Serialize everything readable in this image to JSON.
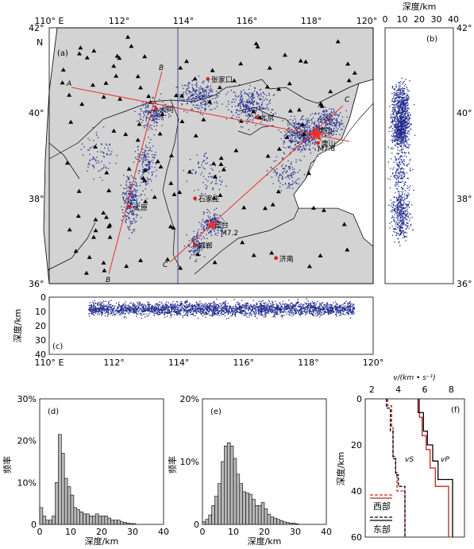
{
  "chart_data": [
    {
      "id": "a",
      "type": "map-scatter",
      "panel_label": "(a)",
      "lon_ticks": [
        "110° E",
        "112°",
        "114°",
        "116°",
        "118°",
        "120°"
      ],
      "lat_ticks": [
        "42°",
        "40°",
        "38°",
        "36°"
      ],
      "north_label": "N",
      "xlim": [
        110,
        120
      ],
      "ylim": [
        36,
        42
      ],
      "profile_endpoints": [
        "A",
        "B",
        "B",
        "C",
        "C"
      ],
      "cities": [
        {
          "name": "张家口",
          "lon": 114.9,
          "lat": 40.8
        },
        {
          "name": "北京",
          "lon": 116.4,
          "lat": 39.9
        },
        {
          "name": "大同",
          "lon": 113.3,
          "lat": 40.1
        },
        {
          "name": "唐山",
          "lon": 118.2,
          "lat": 39.6
        },
        {
          "name": "唐山",
          "lon": 118.3,
          "lat": 39.3
        },
        {
          "name": "太原",
          "lon": 112.5,
          "lat": 37.8
        },
        {
          "name": "石家庄",
          "lon": 114.5,
          "lat": 38.0
        },
        {
          "name": "邢台",
          "lon": 115.0,
          "lat": 37.4
        },
        {
          "name": "邯郸",
          "lon": 114.5,
          "lat": 36.9
        },
        {
          "name": "济南",
          "lon": 117.0,
          "lat": 36.6
        }
      ],
      "magnitude_labels": [
        "M7.8",
        "M7.2"
      ],
      "colors": {
        "land": "#d3d3d3",
        "events": "#1f2a8a",
        "profile": "#e8322b",
        "city": "#d7261e"
      }
    },
    {
      "id": "b",
      "type": "scatter",
      "panel_label": "(b)",
      "xlabel": "深度/km",
      "x_ticks": [
        "0",
        "10",
        "20",
        "30",
        "40"
      ],
      "y_ticks": [
        "42°",
        "40°",
        "38°",
        "36°"
      ],
      "xlim": [
        0,
        40
      ],
      "ylim": [
        36,
        42
      ]
    },
    {
      "id": "c",
      "type": "scatter",
      "panel_label": "(c)",
      "ylabel": "深度/km",
      "y_ticks": [
        "0",
        "10",
        "20",
        "30",
        "40"
      ],
      "x_ticks": [
        "110° E",
        "112°",
        "114°",
        "116°",
        "118°",
        "120°"
      ],
      "xlim": [
        110,
        120
      ],
      "ylim": [
        0,
        40
      ]
    },
    {
      "id": "d",
      "type": "bar",
      "panel_label": "(d)",
      "xlabel": "深度/km",
      "ylabel": "频率",
      "x_ticks": [
        "0",
        "10",
        "20",
        "30",
        "40"
      ],
      "y_ticks": [
        "0",
        "10%",
        "20%",
        "30%"
      ],
      "xlim": [
        0,
        40
      ],
      "ylim": [
        0,
        30
      ],
      "bin_width_km": 1,
      "values": [
        4,
        2,
        1,
        1,
        2,
        10,
        21.5,
        17,
        11,
        9,
        7,
        4,
        3.5,
        3,
        2.5,
        2.5,
        2,
        2,
        2.5,
        2,
        2,
        2,
        1.5,
        1,
        1,
        1,
        0.6,
        0.5,
        0.3,
        0.2,
        0.2
      ]
    },
    {
      "id": "e",
      "type": "bar",
      "panel_label": "(e)",
      "xlabel": "深度/km",
      "ylabel": "频率",
      "x_ticks": [
        "0",
        "10",
        "20",
        "30",
        "40"
      ],
      "y_ticks": [
        "0",
        "10%",
        "20%"
      ],
      "xlim": [
        0,
        40
      ],
      "ylim": [
        0,
        20
      ],
      "bin_width_km": 1,
      "values": [
        0.4,
        0.8,
        1.5,
        3,
        4.5,
        6.5,
        10,
        12.5,
        13,
        12.5,
        10.5,
        8,
        6.5,
        5.2,
        5,
        4.8,
        4,
        3,
        3,
        3.5,
        2.5,
        1.6,
        1.2,
        1,
        0.8,
        0.6,
        0.4,
        0.3,
        0.2,
        0.2,
        0.1
      ]
    },
    {
      "id": "f",
      "type": "line",
      "panel_label": "(f)",
      "xlabel": "v/(km • s⁻¹)",
      "ylabel": "深度/km",
      "x_ticks": [
        "2",
        "4",
        "6",
        "8"
      ],
      "y_ticks": [
        "0",
        "20",
        "40",
        "60"
      ],
      "xlim": [
        1.5,
        9
      ],
      "ylim": [
        0,
        60
      ],
      "curve_labels": [
        "vS",
        "vP"
      ],
      "legend": [
        "西部",
        "东部"
      ],
      "series": [
        {
          "name": "西部",
          "wave": "P",
          "color": "#c0271f",
          "points": [
            [
              5.6,
              0
            ],
            [
              5.6,
              8
            ],
            [
              5.8,
              8
            ],
            [
              5.8,
              16
            ],
            [
              6.1,
              16
            ],
            [
              6.1,
              22
            ],
            [
              6.4,
              22
            ],
            [
              6.4,
              30
            ],
            [
              6.8,
              30
            ],
            [
              6.8,
              38
            ],
            [
              7.8,
              38
            ],
            [
              7.8,
              60
            ]
          ]
        },
        {
          "name": "东部",
          "wave": "P",
          "color": "#000000",
          "points": [
            [
              5.5,
              0
            ],
            [
              5.5,
              6
            ],
            [
              5.9,
              6
            ],
            [
              5.9,
              14
            ],
            [
              6.2,
              14
            ],
            [
              6.2,
              20
            ],
            [
              6.6,
              20
            ],
            [
              6.6,
              27
            ],
            [
              7.0,
              27
            ],
            [
              7.0,
              35
            ],
            [
              8.1,
              35
            ],
            [
              8.1,
              60
            ]
          ]
        },
        {
          "name": "西部",
          "wave": "S",
          "color": "#c0271f",
          "points": [
            [
              3.2,
              0
            ],
            [
              3.2,
              3
            ],
            [
              3.5,
              3
            ],
            [
              3.5,
              12
            ],
            [
              3.6,
              12
            ],
            [
              3.6,
              25
            ],
            [
              3.8,
              25
            ],
            [
              3.8,
              32
            ],
            [
              3.9,
              32
            ],
            [
              3.9,
              40
            ],
            [
              4.5,
              40
            ],
            [
              4.5,
              60
            ]
          ]
        },
        {
          "name": "东部",
          "wave": "S",
          "color": "#000000",
          "points": [
            [
              3.1,
              0
            ],
            [
              3.1,
              4
            ],
            [
              3.4,
              4
            ],
            [
              3.4,
              14
            ],
            [
              3.6,
              14
            ],
            [
              3.6,
              26
            ],
            [
              3.8,
              26
            ],
            [
              3.8,
              33
            ],
            [
              4.0,
              33
            ],
            [
              4.0,
              38
            ],
            [
              4.5,
              38
            ],
            [
              4.5,
              60
            ]
          ]
        }
      ]
    }
  ]
}
